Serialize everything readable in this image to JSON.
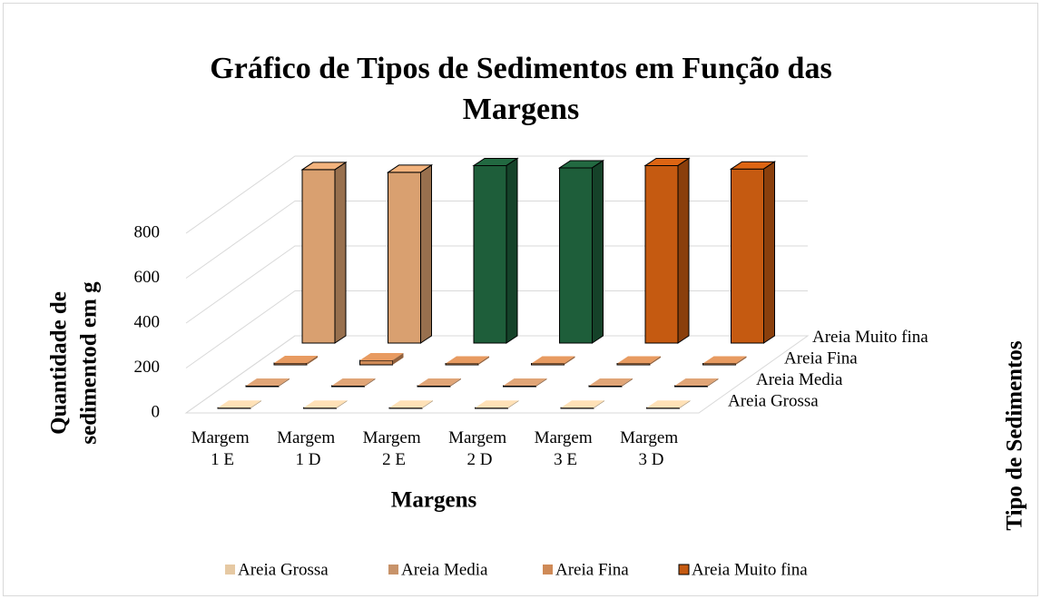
{
  "chart_data": {
    "type": "bar3d",
    "title": [
      "Gráfico de Tipos de Sedimentos em Função das",
      "Margens"
    ],
    "x_label": "Margens",
    "y_label": [
      "Quantidade de",
      "sedimentod em g"
    ],
    "z_label": "Tipo de Sedimentos",
    "categories": [
      "Margem 1 E",
      "Margem 1 D",
      "Margem 2 E",
      "Margem 2 D",
      "Margem 3 E",
      "Margem 3 D"
    ],
    "series": [
      {
        "name": "Areia Grossa",
        "color": "#e6c9a3",
        "values": [
          3,
          3,
          3,
          3,
          3,
          3
        ]
      },
      {
        "name": "Areia Media",
        "color": "#c8936a",
        "values": [
          4,
          4,
          4,
          4,
          4,
          4
        ]
      },
      {
        "name": "Areia Fina",
        "color": "#cf8a57",
        "values": [
          8,
          20,
          6,
          6,
          6,
          6
        ]
      },
      {
        "name": "Areia Muito fina",
        "color": "#c55a11",
        "point_colors": [
          "#d9a070",
          "#d9a070",
          "#1e5e3a",
          "#1e5e3a",
          "#c55a11",
          "#c55a11"
        ],
        "values": [
          772,
          760,
          790,
          780,
          790,
          775
        ]
      }
    ],
    "ylim": [
      0,
      800
    ],
    "yticks": [
      0,
      200,
      400,
      600,
      800
    ],
    "grid": true,
    "legend": "bottom"
  }
}
